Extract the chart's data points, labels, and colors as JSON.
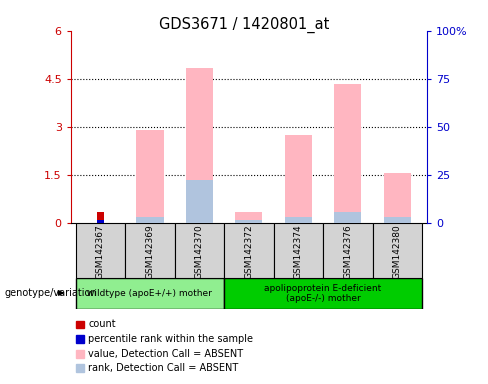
{
  "title": "GDS3671 / 1420801_at",
  "samples": [
    "GSM142367",
    "GSM142369",
    "GSM142370",
    "GSM142372",
    "GSM142374",
    "GSM142376",
    "GSM142380"
  ],
  "count": [
    0.35,
    0,
    0,
    0,
    0,
    0,
    0
  ],
  "percentile_rank": [
    0.08,
    0,
    0,
    0,
    0,
    0,
    0
  ],
  "value_absent": [
    0,
    2.9,
    4.85,
    0.35,
    2.75,
    4.35,
    1.55
  ],
  "rank_absent": [
    0,
    0.19,
    1.32,
    0.1,
    0.19,
    0.32,
    0.19
  ],
  "ylim": [
    0,
    6
  ],
  "yticks": [
    0,
    1.5,
    3.0,
    4.5,
    6.0
  ],
  "ytick_labels": [
    "0",
    "1.5",
    "3",
    "4.5",
    "6"
  ],
  "y2ticks": [
    0,
    25,
    50,
    75,
    100
  ],
  "y2tick_labels": [
    "0",
    "25",
    "50",
    "75",
    "100%"
  ],
  "left_ax_color": "#cc0000",
  "right_ax_color": "#0000cc",
  "bg_color": "#d3d3d3",
  "group1_color": "#90ee90",
  "group2_color": "#00cc00",
  "bar_color_count": "#cc0000",
  "bar_color_rank": "#0000cc",
  "bar_color_value_absent": "#ffb6c1",
  "bar_color_rank_absent": "#b0c4de",
  "legend_items": [
    {
      "label": "count",
      "color": "#cc0000"
    },
    {
      "label": "percentile rank within the sample",
      "color": "#0000cc"
    },
    {
      "label": "value, Detection Call = ABSENT",
      "color": "#ffb6c1"
    },
    {
      "label": "rank, Detection Call = ABSENT",
      "color": "#b0c4de"
    }
  ]
}
